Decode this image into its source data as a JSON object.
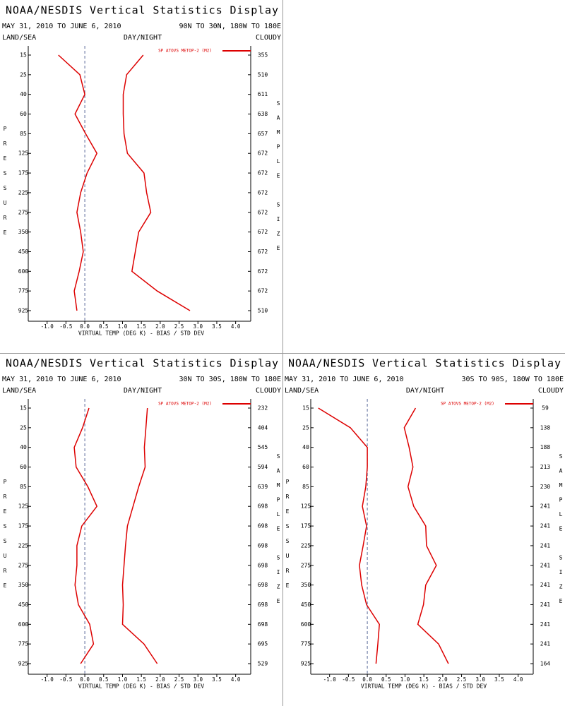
{
  "chart_data": [
    {
      "type": "line",
      "title": "NOAA/NESDIS Vertical Statistics Display",
      "subtitle": "MAY 31, 2010 TO JUNE 6, 2010",
      "region": "90N TO 30N, 180W TO 180E",
      "left_label": "LAND/SEA",
      "center_label": "DAY/NIGHT",
      "right_label": "CLOUDY",
      "ylabel": "PRESSURE",
      "y2label": "SAMPLE SIZE",
      "xlabel": "VIRTUAL TEMP (DEG K) - BIAS / STD DEV",
      "categories": [
        15,
        25,
        40,
        60,
        85,
        125,
        175,
        225,
        275,
        350,
        450,
        600,
        775,
        925
      ],
      "sample_size": [
        355,
        510,
        611,
        638,
        657,
        672,
        672,
        672,
        672,
        672,
        672,
        672,
        672,
        510
      ],
      "series": [
        {
          "name": "SP ATOVS METOP-2 (M2)",
          "color": "#dd0000",
          "bias": [
            -0.7,
            -0.13,
            0.0,
            -0.26,
            0.02,
            0.32,
            0.06,
            -0.11,
            -0.21,
            -0.11,
            -0.04,
            -0.15,
            -0.28,
            -0.21
          ],
          "std_dev": [
            1.55,
            1.11,
            1.02,
            1.02,
            1.04,
            1.13,
            1.57,
            1.64,
            1.75,
            1.43,
            1.34,
            1.25,
            1.92,
            2.79
          ]
        }
      ],
      "xlim": [
        -1.5,
        4.4
      ],
      "xticks": [
        {
          "value": -1,
          "label": "-1.0"
        },
        {
          "value": -0.5,
          "label": "-0.5"
        },
        {
          "value": 0,
          "label": "0.0"
        },
        {
          "value": 0.5,
          "label": "0.5"
        },
        {
          "value": 1,
          "label": "1.0"
        },
        {
          "value": 1.5,
          "label": "1.5"
        },
        {
          "value": 2,
          "label": "2.0"
        },
        {
          "value": 2.5,
          "label": "2.5"
        },
        {
          "value": 3,
          "label": "3.0"
        },
        {
          "value": 3.5,
          "label": "3.5"
        },
        {
          "value": 4,
          "label": "4.0"
        }
      ]
    },
    {
      "type": "line",
      "title": "NOAA/NESDIS Vertical Statistics Display",
      "subtitle": "MAY 31, 2010 TO JUNE 6, 2010",
      "region": "30N TO 30S, 180W TO 180E",
      "left_label": "LAND/SEA",
      "center_label": "DAY/NIGHT",
      "right_label": "CLOUDY",
      "ylabel": "PRESSURE",
      "y2label": "SAMPLE SIZE",
      "xlabel": "VIRTUAL TEMP (DEG K) - BIAS / STD DEV",
      "categories": [
        15,
        25,
        40,
        60,
        85,
        125,
        175,
        225,
        275,
        350,
        450,
        600,
        775,
        925
      ],
      "sample_size": [
        232,
        404,
        545,
        594,
        639,
        698,
        698,
        698,
        698,
        698,
        698,
        698,
        695,
        529
      ],
      "series": [
        {
          "name": "SP ATOVS METOP-2 (M2)",
          "color": "#dd0000",
          "bias": [
            0.11,
            -0.06,
            -0.28,
            -0.23,
            0.08,
            0.32,
            -0.08,
            -0.21,
            -0.21,
            -0.26,
            -0.17,
            0.13,
            0.23,
            -0.11
          ],
          "std_dev": [
            1.66,
            1.62,
            1.58,
            1.6,
            1.43,
            1.28,
            1.13,
            1.08,
            1.04,
            1.0,
            1.02,
            1.0,
            1.57,
            1.92
          ]
        }
      ],
      "xlim": [
        -1.5,
        4.4
      ],
      "xticks": [
        {
          "value": -1,
          "label": "-1.0"
        },
        {
          "value": -0.5,
          "label": "-0.5"
        },
        {
          "value": 0,
          "label": "0.0"
        },
        {
          "value": 0.5,
          "label": "0.5"
        },
        {
          "value": 1,
          "label": "1.0"
        },
        {
          "value": 1.5,
          "label": "1.5"
        },
        {
          "value": 2,
          "label": "2.0"
        },
        {
          "value": 2.5,
          "label": "2.5"
        },
        {
          "value": 3,
          "label": "3.0"
        },
        {
          "value": 3.5,
          "label": "3.5"
        },
        {
          "value": 4,
          "label": "4.0"
        }
      ]
    },
    {
      "type": "line",
      "title": "NOAA/NESDIS Vertical Statistics Display",
      "subtitle": "MAY 31, 2010 TO JUNE 6, 2010",
      "region": "30S TO 90S, 180W TO 180E",
      "left_label": "LAND/SEA",
      "center_label": "DAY/NIGHT",
      "right_label": "CLOUDY",
      "ylabel": "PRESSURE",
      "y2label": "SAMPLE SIZE",
      "xlabel": "VIRTUAL TEMP (DEG K) - BIAS / STD DEV",
      "categories": [
        15,
        25,
        40,
        60,
        85,
        125,
        175,
        225,
        275,
        350,
        450,
        600,
        775,
        925
      ],
      "sample_size": [
        59,
        138,
        188,
        213,
        230,
        241,
        241,
        241,
        241,
        241,
        241,
        241,
        241,
        164
      ],
      "series": [
        {
          "name": "SP ATOVS METOP-2 (M2)",
          "color": "#dd0000",
          "bias": [
            -1.3,
            -0.45,
            0.0,
            0.0,
            -0.04,
            -0.13,
            -0.02,
            -0.11,
            -0.21,
            -0.15,
            -0.02,
            0.32,
            0.28,
            0.23
          ],
          "std_dev": [
            1.28,
            0.98,
            1.11,
            1.21,
            1.08,
            1.23,
            1.55,
            1.57,
            1.83,
            1.55,
            1.49,
            1.34,
            1.89,
            2.15
          ]
        }
      ],
      "xlim": [
        -1.5,
        4.4
      ],
      "xticks": [
        {
          "value": -1,
          "label": "-1.0"
        },
        {
          "value": -0.5,
          "label": "-0.5"
        },
        {
          "value": 0,
          "label": "0.0"
        },
        {
          "value": 0.5,
          "label": "0.5"
        },
        {
          "value": 1,
          "label": "1.0"
        },
        {
          "value": 1.5,
          "label": "1.5"
        },
        {
          "value": 2,
          "label": "2.0"
        },
        {
          "value": 2.5,
          "label": "2.5"
        },
        {
          "value": 3,
          "label": "3.0"
        },
        {
          "value": 3.5,
          "label": "3.5"
        },
        {
          "value": 4,
          "label": "4.0"
        }
      ]
    }
  ]
}
